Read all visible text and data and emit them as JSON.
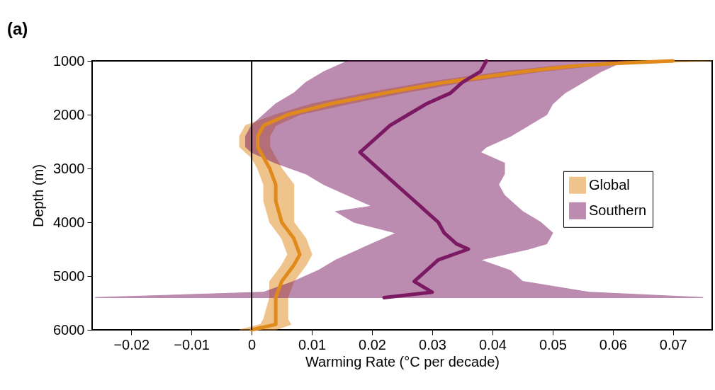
{
  "chart_data": {
    "type": "line",
    "title": "(a)",
    "xlabel": "Warming Rate (°C per decade)",
    "ylabel": "Depth (m)",
    "orientation": "horizontal",
    "xlim": [
      -0.0265,
      0.0765
    ],
    "xticks": [
      -0.02,
      -0.01,
      0,
      0.01,
      0.02,
      0.03,
      0.04,
      0.05,
      0.06,
      0.07
    ],
    "ylim": [
      6000,
      1000
    ],
    "yticks": [
      1000,
      2000,
      3000,
      4000,
      5000,
      6000
    ],
    "grid": false,
    "legend": "right",
    "ref_lines": [
      {
        "axis": "x",
        "value": 0,
        "color": "#000000"
      }
    ],
    "series": [
      {
        "name": "Global",
        "color": "#e08a1c",
        "x": [
          1000,
          1050,
          1100,
          1200,
          1400,
          1600,
          1800,
          2000,
          2200,
          2400,
          2600,
          2800,
          3000,
          3300,
          3600,
          4000,
          4300,
          4600,
          4800,
          5100,
          5400,
          5800,
          5900,
          6000
        ],
        "values": [
          0.07,
          0.06,
          0.053,
          0.045,
          0.032,
          0.022,
          0.013,
          0.006,
          0.002,
          0.001,
          0.001,
          0.002,
          0.003,
          0.004,
          0.004,
          0.005,
          0.007,
          0.008,
          0.007,
          0.005,
          0.004,
          0.004,
          0.004,
          0.0
        ],
        "lower": [
          0.062,
          0.057,
          0.05,
          0.042,
          0.029,
          0.019,
          0.01,
          0.004,
          -0.001,
          -0.002,
          -0.002,
          0.0,
          0.001,
          0.002,
          0.002,
          0.003,
          0.005,
          0.006,
          0.005,
          0.003,
          0.003,
          0.002,
          0.0015,
          -0.002
        ],
        "upper": [
          0.0765,
          0.063,
          0.056,
          0.048,
          0.035,
          0.025,
          0.016,
          0.008,
          0.004,
          0.003,
          0.003,
          0.004,
          0.005,
          0.007,
          0.007,
          0.007,
          0.009,
          0.01,
          0.009,
          0.007,
          0.006,
          0.006,
          0.0065,
          0.004
        ]
      },
      {
        "name": "Southern",
        "color": "#7b1a63",
        "x": [
          1000,
          1200,
          1400,
          1600,
          1800,
          2000,
          2200,
          2400,
          2600,
          2700,
          2900,
          3100,
          3300,
          3500,
          3700,
          3800,
          4000,
          4200,
          4400,
          4500,
          4700,
          4900,
          5100,
          5300,
          5400
        ],
        "values": [
          0.039,
          0.038,
          0.035,
          0.033,
          0.029,
          0.026,
          0.023,
          0.021,
          0.019,
          0.018,
          0.02,
          0.022,
          0.024,
          0.026,
          0.028,
          0.029,
          0.031,
          0.032,
          0.034,
          0.036,
          0.031,
          0.029,
          0.027,
          0.03,
          0.022
        ],
        "lower": [
          0.016,
          0.012,
          0.009,
          0.007,
          0.004,
          0.002,
          0.0,
          -0.001,
          -0.001,
          0.0,
          0.004,
          0.009,
          0.012,
          0.016,
          0.02,
          0.014,
          0.017,
          0.024,
          0.02,
          0.018,
          0.014,
          0.011,
          0.007,
          0.002,
          -0.026
        ],
        "upper": [
          0.062,
          0.058,
          0.055,
          0.052,
          0.05,
          0.049,
          0.046,
          0.043,
          0.039,
          0.038,
          0.042,
          0.042,
          0.041,
          0.042,
          0.044,
          0.045,
          0.048,
          0.05,
          0.049,
          0.046,
          0.038,
          0.043,
          0.045,
          0.056,
          0.075
        ]
      }
    ]
  }
}
